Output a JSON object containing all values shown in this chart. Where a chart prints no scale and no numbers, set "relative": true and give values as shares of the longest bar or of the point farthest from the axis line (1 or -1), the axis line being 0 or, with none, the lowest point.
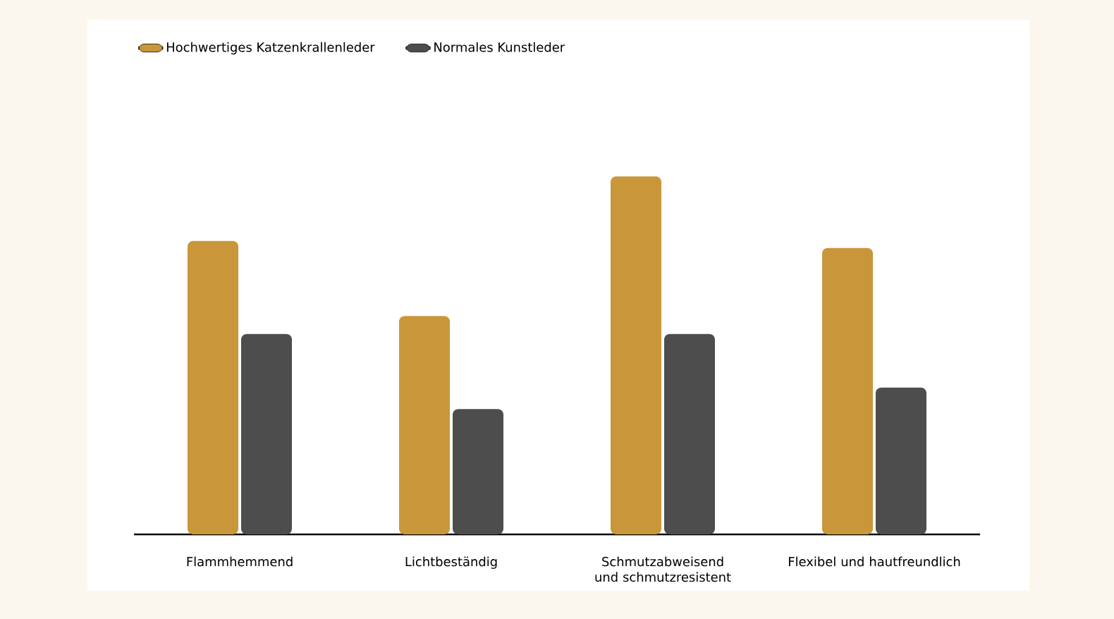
{
  "chart_data": {
    "type": "bar",
    "relative": true,
    "legend": "top left",
    "categories": [
      "Flammhemmend",
      "Lichtbeständig",
      "Schmutzabweisend und schmutzresistent",
      "Flexibel und hautfreundlich"
    ],
    "series": [
      {
        "name": "Hochwertiges Katzenkrallenleder",
        "color": "#c9963a",
        "values": [
          0.82,
          0.61,
          1,
          0.8
        ]
      },
      {
        "name": "Normales Kunstleder",
        "color": "#4d4d4d",
        "values": [
          0.56,
          0.35,
          0.56,
          0.41
        ]
      }
    ]
  }
}
